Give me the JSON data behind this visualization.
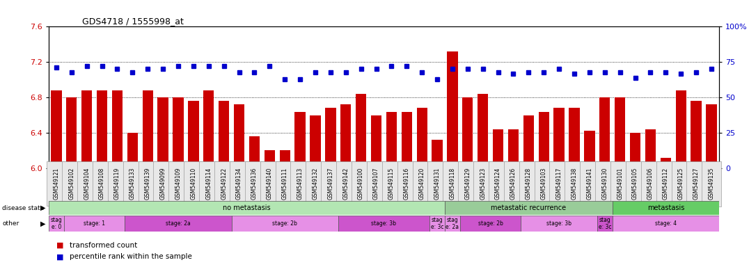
{
  "title": "GDS4718 / 1555998_at",
  "samples": [
    "GSM549121",
    "GSM549102",
    "GSM549104",
    "GSM549108",
    "GSM549119",
    "GSM549133",
    "GSM549139",
    "GSM549099",
    "GSM549109",
    "GSM549110",
    "GSM549114",
    "GSM549122",
    "GSM549134",
    "GSM549136",
    "GSM549140",
    "GSM549111",
    "GSM549113",
    "GSM549132",
    "GSM549137",
    "GSM549142",
    "GSM549100",
    "GSM549107",
    "GSM549115",
    "GSM549116",
    "GSM549120",
    "GSM549131",
    "GSM549118",
    "GSM549129",
    "GSM549123",
    "GSM549124",
    "GSM549126",
    "GSM549128",
    "GSM549103",
    "GSM549117",
    "GSM549138",
    "GSM549141",
    "GSM549130",
    "GSM549101",
    "GSM549105",
    "GSM549106",
    "GSM549112",
    "GSM549125",
    "GSM549127",
    "GSM549135"
  ],
  "bar_values": [
    6.88,
    6.8,
    6.88,
    6.88,
    6.88,
    6.4,
    6.88,
    6.8,
    6.8,
    6.76,
    6.88,
    6.76,
    6.72,
    6.36,
    6.2,
    6.2,
    6.64,
    6.6,
    6.68,
    6.72,
    6.84,
    6.6,
    6.64,
    6.64,
    6.68,
    6.32,
    7.32,
    6.8,
    6.84,
    6.44,
    6.44,
    6.6,
    6.64,
    6.68,
    6.68,
    6.42,
    6.8,
    6.8,
    6.4,
    6.44,
    6.12,
    6.88,
    6.76,
    6.72
  ],
  "percentile_values": [
    71,
    68,
    72,
    72,
    70,
    68,
    70,
    70,
    72,
    72,
    72,
    72,
    68,
    68,
    72,
    63,
    63,
    68,
    68,
    68,
    70,
    70,
    72,
    72,
    68,
    63,
    70,
    70,
    70,
    68,
    67,
    68,
    68,
    70,
    67,
    68,
    68,
    68,
    64,
    68,
    68,
    67,
    68,
    70
  ],
  "ylim_left": [
    6.0,
    7.6
  ],
  "ylim_right": [
    0,
    100
  ],
  "yticks_left": [
    6.0,
    6.4,
    6.8,
    7.2,
    7.6
  ],
  "yticks_right": [
    0,
    25,
    50,
    75,
    100
  ],
  "bar_color": "#cc0000",
  "marker_color": "#0000cc",
  "plot_bg_color": "#ffffff",
  "disease_state_groups": [
    {
      "label": "no metastasis",
      "start": 0,
      "end": 26,
      "color": "#b3e6b3"
    },
    {
      "label": "metastatic recurrence",
      "start": 26,
      "end": 37,
      "color": "#99cc99"
    },
    {
      "label": "metastasis",
      "start": 37,
      "end": 44,
      "color": "#66cc66"
    }
  ],
  "other_groups": [
    {
      "label": "stag\ne: 0",
      "start": 0,
      "end": 1,
      "color": "#e690e6"
    },
    {
      "label": "stage: 1",
      "start": 1,
      "end": 5,
      "color": "#e690e6"
    },
    {
      "label": "stage: 2a",
      "start": 5,
      "end": 12,
      "color": "#cc55cc"
    },
    {
      "label": "stage: 2b",
      "start": 12,
      "end": 19,
      "color": "#e690e6"
    },
    {
      "label": "stage: 3b",
      "start": 19,
      "end": 25,
      "color": "#cc55cc"
    },
    {
      "label": "stag\ne: 3c",
      "start": 25,
      "end": 26,
      "color": "#e690e6"
    },
    {
      "label": "stag\ne: 2a",
      "start": 26,
      "end": 27,
      "color": "#e690e6"
    },
    {
      "label": "stage: 2b",
      "start": 27,
      "end": 31,
      "color": "#cc55cc"
    },
    {
      "label": "stage: 3b",
      "start": 31,
      "end": 36,
      "color": "#e690e6"
    },
    {
      "label": "stag\ne: 3c",
      "start": 36,
      "end": 37,
      "color": "#cc55cc"
    },
    {
      "label": "stage: 4",
      "start": 37,
      "end": 44,
      "color": "#e690e6"
    }
  ],
  "legend_items": [
    {
      "label": "transformed count",
      "color": "#cc0000"
    },
    {
      "label": "percentile rank within the sample",
      "color": "#0000cc"
    }
  ]
}
